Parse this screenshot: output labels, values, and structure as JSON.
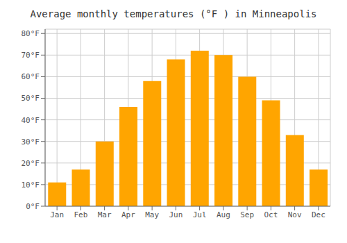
{
  "chart_data": {
    "type": "bar",
    "title": "Average monthly temperatures (°F ) in Minneapolis",
    "categories": [
      "Jan",
      "Feb",
      "Mar",
      "Apr",
      "May",
      "Jun",
      "Jul",
      "Aug",
      "Sep",
      "Oct",
      "Nov",
      "Dec"
    ],
    "values": [
      11,
      17,
      30,
      46,
      58,
      68,
      72,
      70,
      60,
      49,
      33,
      17
    ],
    "color": "#FFA500",
    "ylim": [
      0,
      82
    ],
    "yticks": [
      {
        "value": 0,
        "label": "0°F"
      },
      {
        "value": 10,
        "label": "10°F"
      },
      {
        "value": 20,
        "label": "20°F"
      },
      {
        "value": 30,
        "label": "30°F"
      },
      {
        "value": 40,
        "label": "40°F"
      },
      {
        "value": 50,
        "label": "50°F"
      },
      {
        "value": 60,
        "label": "60°F"
      },
      {
        "value": 70,
        "label": "70°F"
      },
      {
        "value": 80,
        "label": "80°F"
      }
    ],
    "grid": true
  }
}
